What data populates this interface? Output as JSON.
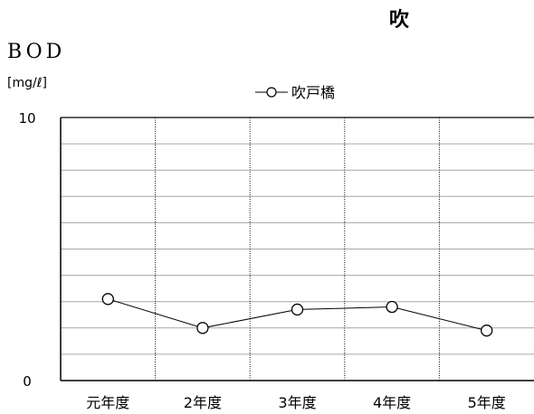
{
  "chart_data": {
    "type": "line",
    "title": "吹",
    "ylabel": "BOD",
    "yunit": "[mg/ℓ]",
    "ylim": [
      0,
      10
    ],
    "ytick_labels": [
      "0",
      "10"
    ],
    "categories": [
      "元年度",
      "2年度",
      "3年度",
      "4年度",
      "5年度"
    ],
    "series": [
      {
        "name": "吹戸橋",
        "values": [
          3.1,
          2.0,
          2.7,
          2.8,
          1.9
        ],
        "color": "#000000"
      }
    ],
    "grid": true,
    "legend_position": "top-center"
  }
}
